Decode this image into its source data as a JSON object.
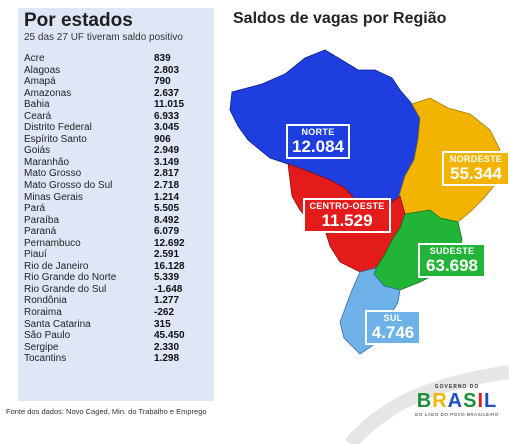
{
  "panel": {
    "title": "Por estados",
    "subtitle": "25 das 27 UF tiveram saldo positivo",
    "rows": [
      {
        "state": "Acre",
        "value": "839"
      },
      {
        "state": "Alagoas",
        "value": "2.803"
      },
      {
        "state": "Amapá",
        "value": "790"
      },
      {
        "state": "Amazonas",
        "value": "2.637"
      },
      {
        "state": "Bahia",
        "value": "11.015"
      },
      {
        "state": "Ceará",
        "value": "6.933"
      },
      {
        "state": "Distrito Federal",
        "value": "3.045"
      },
      {
        "state": "Espírito Santo",
        "value": "906"
      },
      {
        "state": "Goiás",
        "value": "2.949"
      },
      {
        "state": "Maranhão",
        "value": "3.149"
      },
      {
        "state": "Mato Grosso",
        "value": "2.817"
      },
      {
        "state": "Mato Grosso do Sul",
        "value": "2.718"
      },
      {
        "state": "Minas Gerais",
        "value": "1.214"
      },
      {
        "state": "Pará",
        "value": "5.505"
      },
      {
        "state": "Paraíba",
        "value": "8.492"
      },
      {
        "state": "Paraná",
        "value": "6.079"
      },
      {
        "state": "Pernambuco",
        "value": "12.692"
      },
      {
        "state": "Piauí",
        "value": "2.591"
      },
      {
        "state": "Rio de Janeiro",
        "value": "16.128"
      },
      {
        "state": "Rio Grande do Norte",
        "value": "5.339"
      },
      {
        "state": "Rio Grande do Sul",
        "value": "-1.648"
      },
      {
        "state": "Rondônia",
        "value": "1.277"
      },
      {
        "state": "Roraima",
        "value": "-262"
      },
      {
        "state": "Santa Catarina",
        "value": "315"
      },
      {
        "state": "São Paulo",
        "value": "45.450"
      },
      {
        "state": "Sergipe",
        "value": "2.330"
      },
      {
        "state": "Tocantins",
        "value": "1.298"
      }
    ]
  },
  "source": "Fonte dos dados: Novo Caged, Min. do Trabalho e Emprego",
  "map": {
    "title": "Saldos de vagas por Região",
    "regions": {
      "norte": {
        "name": "NORTE",
        "value": "12.084",
        "color": "#1e3ee0"
      },
      "nordeste": {
        "name": "NORDESTE",
        "value": "55.344",
        "color": "#f2b400"
      },
      "centro_oeste": {
        "name": "CENTRO-OESTE",
        "value": "11.529",
        "color": "#e41b1b"
      },
      "sudeste": {
        "name": "SUDESTE",
        "value": "63.698",
        "color": "#22b436"
      },
      "sul": {
        "name": "SUL",
        "value": "4.746",
        "color": "#6fb2ea"
      }
    }
  },
  "logo": {
    "top": "GOVERNO DO",
    "word": [
      "B",
      "R",
      "A",
      "S",
      "I",
      "L"
    ],
    "tagline": "DO LADO DO POVO BRASILEIRO"
  }
}
